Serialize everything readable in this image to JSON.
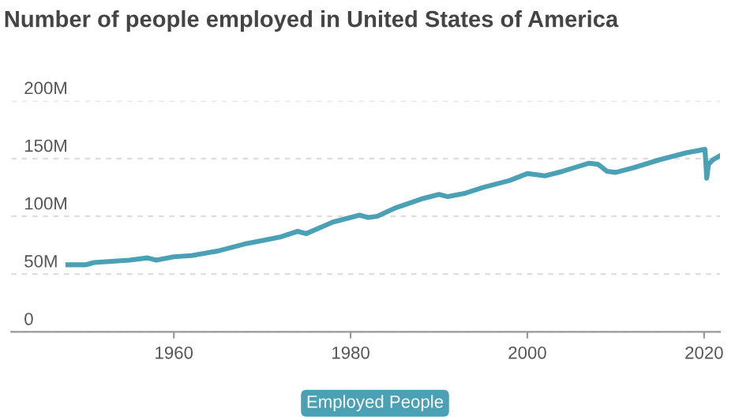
{
  "chart_data": {
    "type": "line",
    "title": "Number of people employed in United States of America",
    "x": [
      1948,
      1950,
      1951,
      1953,
      1955,
      1957,
      1958,
      1960,
      1962,
      1965,
      1968,
      1970,
      1972,
      1974,
      1975,
      1978,
      1980,
      1981,
      1982,
      1983,
      1985,
      1988,
      1990,
      1991,
      1993,
      1995,
      1998,
      2000,
      2001,
      2002,
      2004,
      2007,
      2008,
      2009,
      2010,
      2012,
      2015,
      2018,
      2020.1,
      2020.3,
      2020.5,
      2021,
      2021.7
    ],
    "series": [
      {
        "name": "Employed People",
        "color": "#4aa0b5",
        "values": [
          58,
          58,
          60,
          61,
          62,
          64,
          62,
          65,
          66,
          70,
          76,
          79,
          82,
          87,
          85,
          95,
          99,
          101,
          99,
          100,
          107,
          115,
          119,
          117,
          120,
          125,
          131,
          137,
          136,
          135,
          139,
          146,
          145,
          139,
          138,
          142,
          149,
          155,
          158,
          133,
          145,
          149,
          152
        ]
      }
    ],
    "xlim": [
      1941.6,
      2021.8
    ],
    "xticks": [
      1960,
      1980,
      2000,
      2020
    ],
    "ylim": [
      0,
      200
    ],
    "yticks": [
      {
        "value": 0,
        "label": "0"
      },
      {
        "value": 50,
        "label": "50M"
      },
      {
        "value": 100,
        "label": "100M"
      },
      {
        "value": 150,
        "label": "150M"
      },
      {
        "value": 200,
        "label": "200M"
      }
    ],
    "grid": "y",
    "legend": "bottom",
    "marker": "none",
    "line_style": "solid"
  }
}
